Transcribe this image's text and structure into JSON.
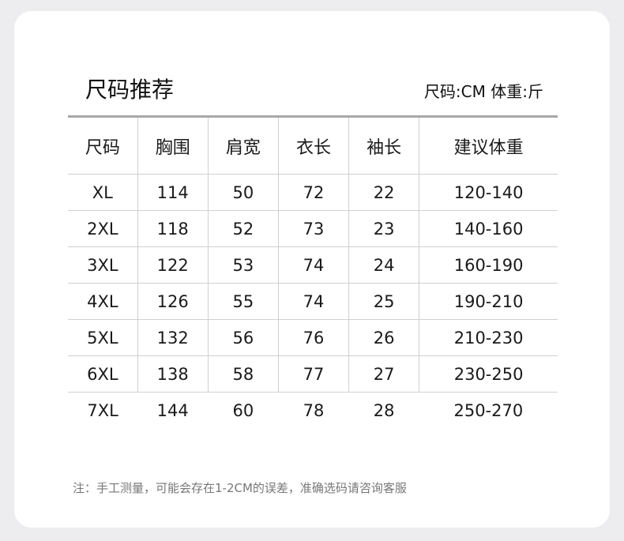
{
  "title": "尺码推荐",
  "unit_note": "尺码:CM 体重:斤",
  "table": {
    "headers": [
      "尺码",
      "胸围",
      "肩宽",
      "衣长",
      "袖长",
      "建议体重"
    ],
    "rows": [
      [
        "XL",
        "114",
        "50",
        "72",
        "22",
        "120-140"
      ],
      [
        "2XL",
        "118",
        "52",
        "73",
        "23",
        "140-160"
      ],
      [
        "3XL",
        "122",
        "53",
        "74",
        "24",
        "160-190"
      ],
      [
        "4XL",
        "126",
        "55",
        "74",
        "25",
        "190-210"
      ],
      [
        "5XL",
        "132",
        "56",
        "76",
        "26",
        "210-230"
      ],
      [
        "6XL",
        "138",
        "58",
        "77",
        "27",
        "230-250"
      ],
      [
        "7XL",
        "144",
        "60",
        "78",
        "28",
        "250-270"
      ]
    ]
  },
  "footnote": "注：手工测量，可能会存在1-2CM的误差，准确选码请咨询客服"
}
